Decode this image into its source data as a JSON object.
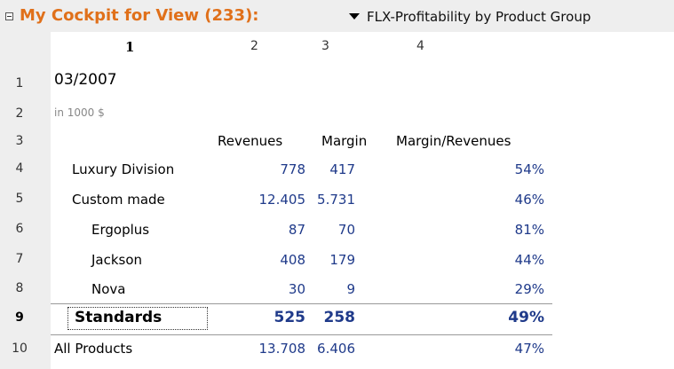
{
  "title_bar": {
    "cockpit_title": "My Cockpit for View (233):",
    "view_name": "FLX-Profitability by Product Group"
  },
  "column_headers": [
    "1",
    "2",
    "3",
    "4"
  ],
  "date": "03/2007",
  "unit": "in 1000 $",
  "table_headers": {
    "revenues": "Revenues",
    "margin": "Margin",
    "margin_revenues": "Margin/Revenues"
  },
  "rows": [
    {
      "num": "1"
    },
    {
      "num": "2"
    },
    {
      "num": "3"
    },
    {
      "num": "4",
      "label": "Luxury Division",
      "revenues": "778",
      "margin": "417",
      "ratio": "54%"
    },
    {
      "num": "5",
      "label": "Custom made",
      "revenues": "12.405",
      "margin": "5.731",
      "ratio": "46%"
    },
    {
      "num": "6",
      "label": "Ergoplus",
      "revenues": "87",
      "margin": "70",
      "ratio": "81%"
    },
    {
      "num": "7",
      "label": "Jackson",
      "revenues": "408",
      "margin": "179",
      "ratio": "44%"
    },
    {
      "num": "8",
      "label": "Nova",
      "revenues": "30",
      "margin": "9",
      "ratio": "29%"
    },
    {
      "num": "9",
      "label": "Standards",
      "revenues": "525",
      "margin": "258",
      "ratio": "49%"
    },
    {
      "num": "10",
      "label": "All Products",
      "revenues": "13.708",
      "margin": "6.406",
      "ratio": "47%"
    }
  ]
}
